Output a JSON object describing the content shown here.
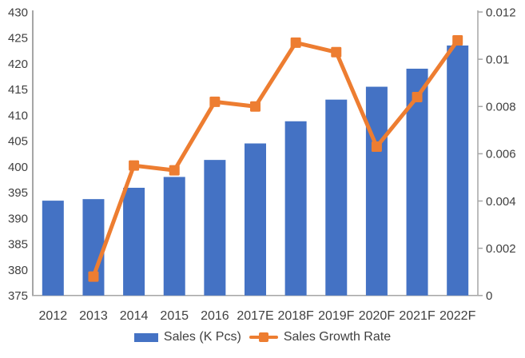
{
  "chart_data": {
    "type": "bar",
    "subtype": "combo bar + line, dual y-axis",
    "categories": [
      "2012",
      "2013",
      "2014",
      "2015",
      "2016",
      "2017E",
      "2018F",
      "2019F",
      "2020F",
      "2021F",
      "2022F"
    ],
    "series": [
      {
        "name": "Sales (K Pcs)",
        "kind": "bar",
        "axis": "left",
        "color": "#4472C4",
        "values": [
          393.4,
          393.7,
          395.9,
          398.0,
          401.3,
          404.5,
          408.8,
          413.0,
          415.5,
          419.0,
          423.5
        ]
      },
      {
        "name": "Sales Growth Rate",
        "kind": "line",
        "axis": "right",
        "color": "#ED7D31",
        "marker": "square",
        "values": [
          null,
          0.0008,
          0.0055,
          0.0053,
          0.0082,
          0.008,
          0.0107,
          0.0103,
          0.0063,
          0.0084,
          0.0108
        ]
      }
    ],
    "left_axis": {
      "min": 375,
      "max": 430,
      "step": 5,
      "tick_labels": [
        "375",
        "380",
        "385",
        "390",
        "395",
        "400",
        "405",
        "410",
        "415",
        "420",
        "425",
        "430"
      ]
    },
    "right_axis": {
      "min": 0,
      "max": 0.012,
      "step": 0.002,
      "tick_labels": [
        "0",
        "0.002",
        "0.004",
        "0.006",
        "0.008",
        "0.01",
        "0.012"
      ]
    },
    "grid": false,
    "legend_position": "bottom"
  },
  "colors": {
    "bar": "#4472C4",
    "line": "#ED7D31",
    "axis_line": "#A6A6A6",
    "text": "#404040",
    "background": "#FFFFFF"
  }
}
